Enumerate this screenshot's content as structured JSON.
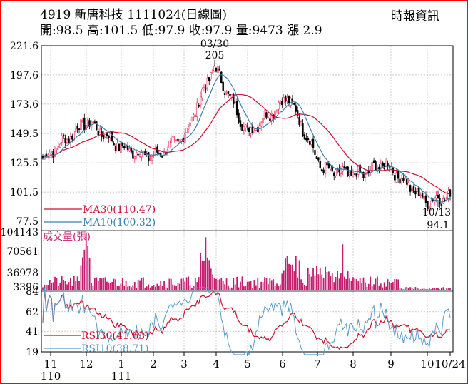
{
  "header": {
    "title": "4919  新唐科技 1111024(日線圖)",
    "source": "時報資訊",
    "stats": "開:98.5 高:101.5 低:97.9 收:97.9 量:9473 漲 2.9"
  },
  "colors": {
    "frame": "#ff0000",
    "up": "#e8305c",
    "down": "#000000",
    "ma30": "#c8102e",
    "ma10": "#3a7fb0",
    "volume": "#c41e6e",
    "rsi30": "#c8102e",
    "rsi10": "#5a9ac8",
    "grid": "#b0b0b0"
  },
  "chart_data": [
    {
      "type": "candlestick",
      "name": "price",
      "y_ticks": [
        "221.6",
        "197.6",
        "173.6",
        "149.5",
        "125.5",
        "101.5",
        "77.5"
      ],
      "ylim": [
        77.5,
        221.6
      ],
      "grid": true,
      "annotations": [
        {
          "label_date": "03/30",
          "label_value": "205",
          "position": "high"
        },
        {
          "label_date": "10/13",
          "label_value": "94.1",
          "position": "low"
        }
      ],
      "series": [
        {
          "name": "MA30(110.47)",
          "color": "#c8102e"
        },
        {
          "name": "MA10(100.32)",
          "color": "#3a7fb0"
        }
      ],
      "key_points": [
        {
          "date": "11",
          "value": 129
        },
        {
          "date": "12",
          "value": 160
        },
        {
          "date": "1",
          "value": 138
        },
        {
          "date": "2",
          "value": 130
        },
        {
          "date": "3",
          "value": 147
        },
        {
          "date": "03/30",
          "value": 205
        },
        {
          "date": "5",
          "value": 150
        },
        {
          "date": "6",
          "value": 180
        },
        {
          "date": "7",
          "value": 120
        },
        {
          "date": "8",
          "value": 115
        },
        {
          "date": "9",
          "value": 125
        },
        {
          "date": "10/13",
          "value": 94.1
        },
        {
          "date": "10/24",
          "value": 97.9
        }
      ]
    },
    {
      "type": "bar",
      "name": "volume",
      "label": "成交量(張)",
      "y_ticks": [
        "104143",
        "70561",
        "36978",
        "3396"
      ],
      "ylim": [
        3396,
        104143
      ]
    },
    {
      "type": "line",
      "name": "rsi",
      "y_ticks": [
        "84",
        "62",
        "41",
        "19"
      ],
      "ylim": [
        19,
        84
      ],
      "series": [
        {
          "name": "RSI30(41.63)",
          "color": "#c8102e"
        },
        {
          "name": "RSI10(38.71)",
          "color": "#5a9ac8"
        }
      ]
    }
  ],
  "x_axis": {
    "month_labels": [
      "11",
      "12",
      "1",
      "2",
      "3",
      "4",
      "5",
      "6",
      "7",
      "8",
      "9",
      "10",
      "10/24"
    ],
    "year_labels": [
      {
        "text": "110",
        "month": "11"
      },
      {
        "text": "111",
        "month": "1"
      }
    ]
  }
}
